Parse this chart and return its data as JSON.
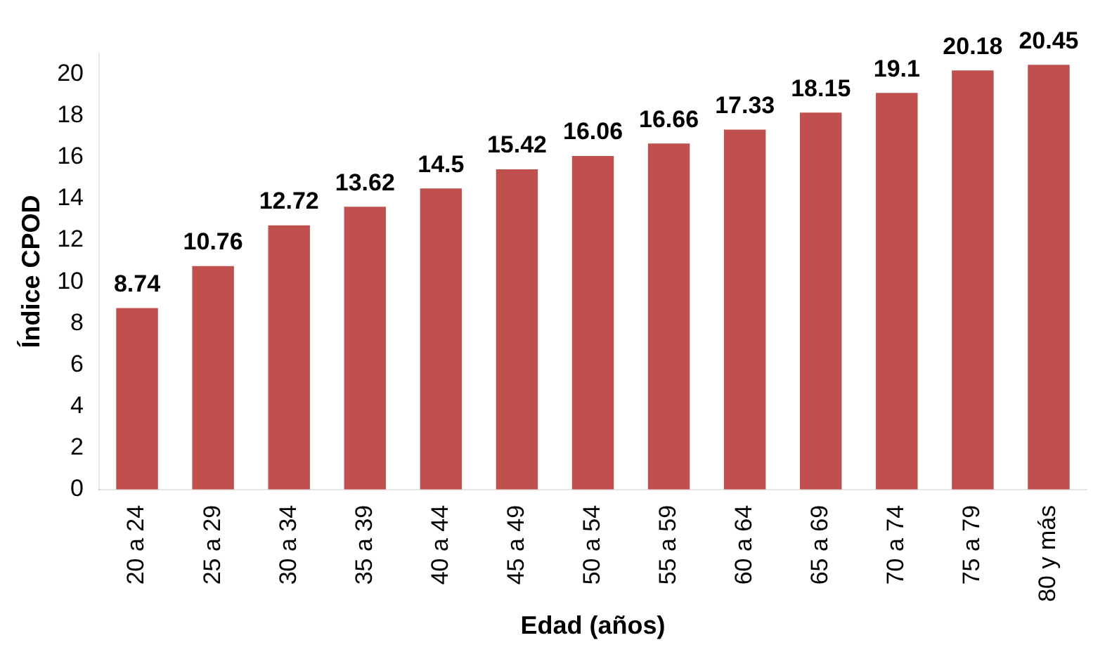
{
  "chart_data": {
    "type": "bar",
    "xlabel": "Edad (años)",
    "ylabel": "Índice CPOD",
    "categories": [
      "20 a 24",
      "25 a 29",
      "30 a 34",
      "35 a 39",
      "40 a 44",
      "45 a 49",
      "50 a 54",
      "55 a 59",
      "60 a 64",
      "65 a 69",
      "70 a 74",
      "75 a 79",
      "80 y más"
    ],
    "values": [
      8.74,
      10.76,
      12.72,
      13.62,
      14.5,
      15.42,
      16.06,
      16.66,
      17.33,
      18.15,
      19.1,
      20.18,
      20.45
    ],
    "color": "#c0504d",
    "ylim": [
      0,
      21
    ],
    "yticks": [
      0,
      2,
      4,
      6,
      8,
      10,
      12,
      14,
      16,
      18,
      20
    ],
    "grid": false,
    "data_labels": true,
    "legend": false
  }
}
